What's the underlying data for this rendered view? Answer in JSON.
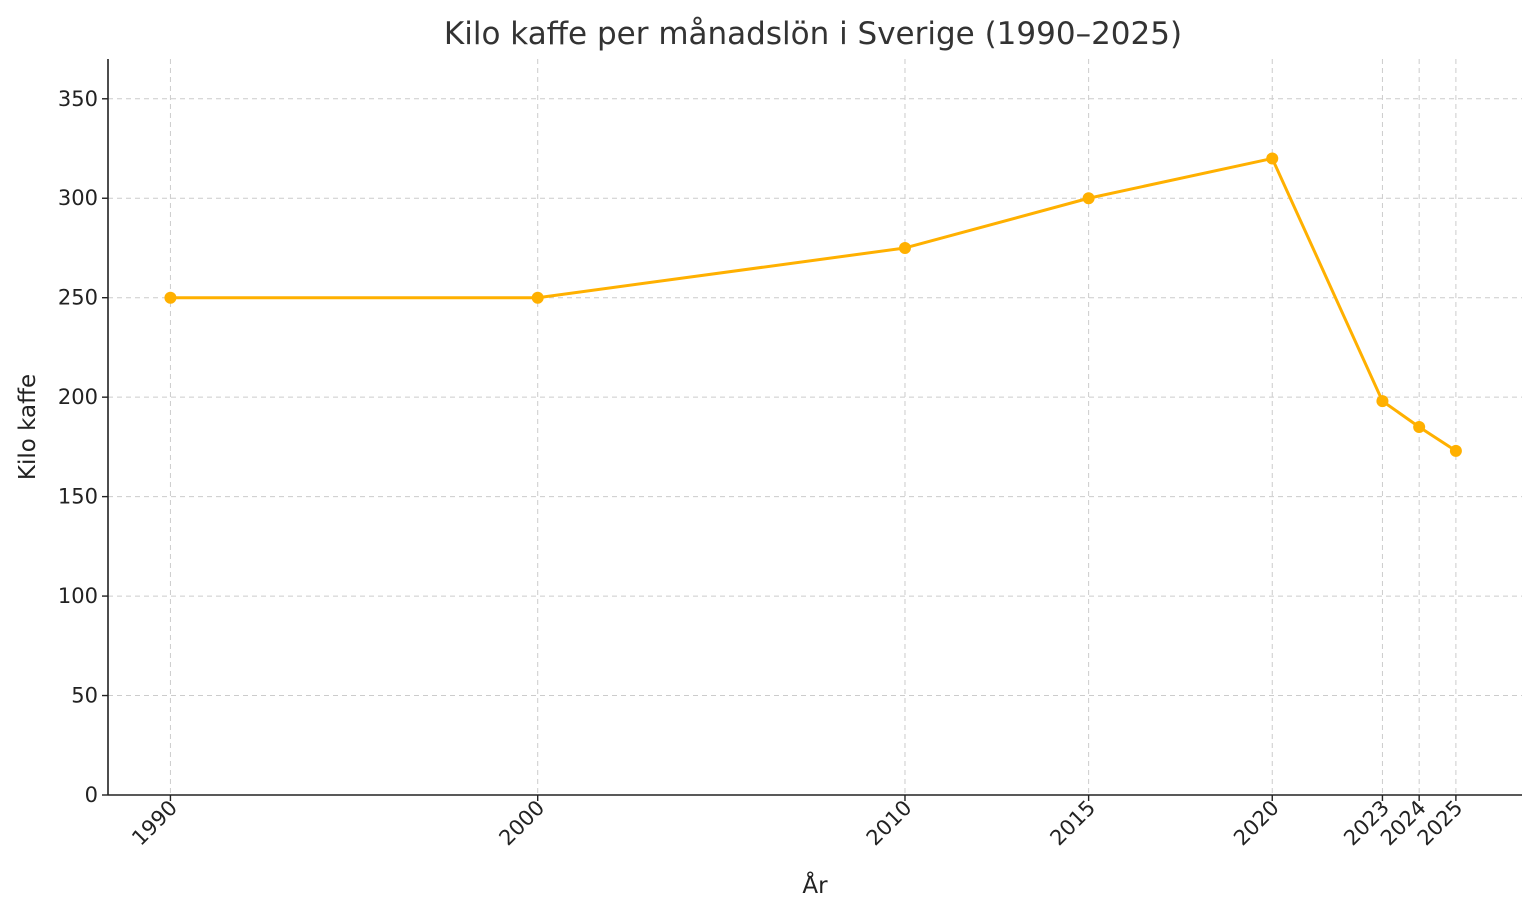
{
  "chart_data": {
    "type": "line",
    "title": "Kilo kaffe per månadslön i Sverige (1990–2025)",
    "xlabel": "År",
    "ylabel": "Kilo kaffe",
    "x": [
      1990,
      2000,
      2010,
      2015,
      2020,
      2023,
      2024,
      2025
    ],
    "x_tick_labels": [
      "1990",
      "2000",
      "2010",
      "2015",
      "2020",
      "2023",
      "2024",
      "2025"
    ],
    "y_ticks": [
      0,
      50,
      100,
      150,
      200,
      250,
      300,
      350
    ],
    "xlim": [
      1988.3,
      2026.8
    ],
    "ylim": [
      0,
      370
    ],
    "series": [
      {
        "values": [
          250,
          250,
          275,
          300,
          320,
          198,
          185,
          173
        ],
        "color": "#FFB000"
      }
    ],
    "grid": true,
    "x_tick_rotation": "45 degrees"
  }
}
